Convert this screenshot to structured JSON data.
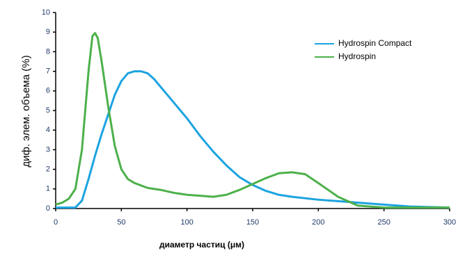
{
  "chart_data": {
    "type": "line",
    "xlabel": "диаметр частиц (μм)",
    "ylabel": "диф. элем. объема (%)",
    "xlim": [
      0,
      300
    ],
    "xticks": [
      0,
      50,
      100,
      150,
      200,
      250,
      300
    ],
    "ylim": [
      0,
      10
    ],
    "yticks": [
      0,
      1,
      2,
      3,
      4,
      5,
      6,
      7,
      8,
      9,
      10
    ],
    "legend": "upper right",
    "series": [
      {
        "name": "Hydrospin Compact",
        "color": "#1ba3e0",
        "x": [
          0,
          15,
          20,
          25,
          30,
          35,
          40,
          45,
          50,
          55,
          60,
          65,
          70,
          75,
          80,
          90,
          100,
          110,
          120,
          130,
          140,
          150,
          160,
          170,
          180,
          200,
          220,
          250,
          270,
          300
        ],
        "values": [
          0.05,
          0.05,
          0.4,
          1.5,
          2.7,
          3.8,
          4.8,
          5.8,
          6.5,
          6.9,
          7.0,
          7.0,
          6.9,
          6.6,
          6.2,
          5.4,
          4.6,
          3.7,
          2.9,
          2.2,
          1.6,
          1.2,
          0.9,
          0.7,
          0.6,
          0.45,
          0.35,
          0.2,
          0.1,
          0.05
        ]
      },
      {
        "name": "Hydrospin",
        "color": "#4cb04a",
        "x": [
          0,
          5,
          10,
          15,
          20,
          25,
          28,
          30,
          32,
          35,
          40,
          45,
          50,
          55,
          60,
          70,
          80,
          90,
          100,
          110,
          120,
          130,
          140,
          150,
          160,
          170,
          180,
          190,
          200,
          215,
          230,
          250,
          270,
          300
        ],
        "values": [
          0.2,
          0.3,
          0.5,
          1.0,
          3.0,
          7.0,
          8.8,
          8.95,
          8.7,
          7.5,
          5.2,
          3.2,
          2.0,
          1.5,
          1.3,
          1.05,
          0.95,
          0.8,
          0.7,
          0.65,
          0.6,
          0.7,
          0.95,
          1.25,
          1.55,
          1.8,
          1.85,
          1.75,
          1.3,
          0.6,
          0.15,
          0.05,
          0.05,
          0.05
        ]
      }
    ]
  }
}
